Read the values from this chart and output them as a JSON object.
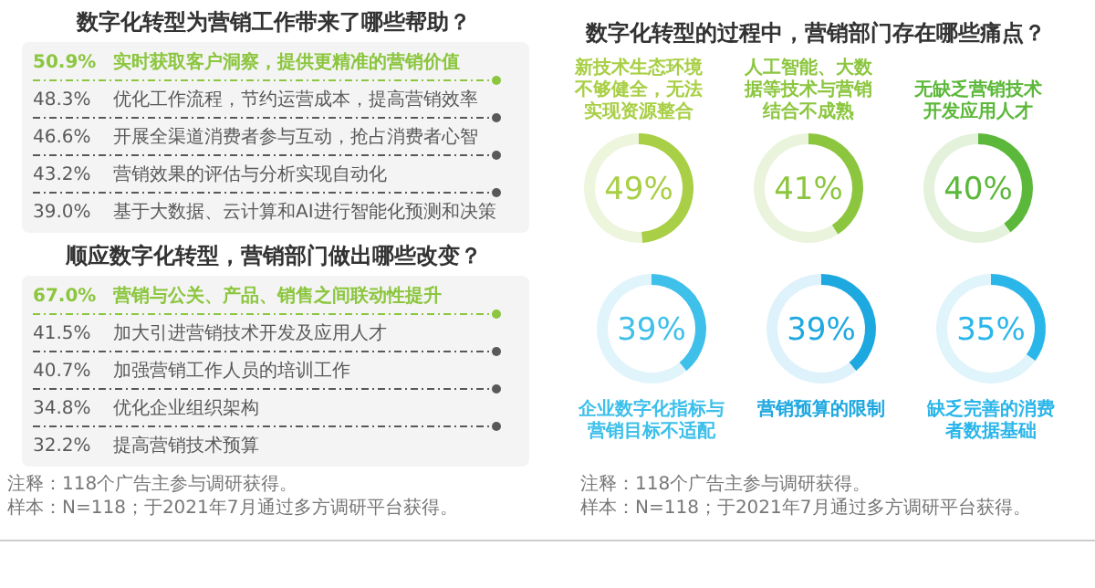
{
  "chart_data": [
    {
      "type": "other",
      "title": "数字化转型为营销工作带来了哪些帮助？",
      "categories": [
        "实时获取客户洞察，提供更精准的营销价值",
        "优化工作流程，节约运营成本，提高营销效率",
        "开展全渠道消费者参与互动，抢占消费者心智",
        "营销效果的评估与分析实现自动化",
        "基于大数据、云计算和AI进行智能化预测和决策"
      ],
      "value_labels": [
        "50.9%",
        "48.3%",
        "46.6%",
        "43.2%",
        "39.0%"
      ]
    },
    {
      "type": "other",
      "title": "顺应数字化转型，营销部门做出哪些改变？",
      "categories": [
        "营销与公关、产品、销售之间联动性提升",
        "加大引进营销技术开发及应用人才",
        "加强营销工作人员的培训工作",
        "优化企业组织架构",
        "提高营销技术预算"
      ],
      "value_labels": [
        "67.0%",
        "41.5%",
        "40.7%",
        "34.8%",
        "32.2%"
      ],
      "annotations": [
        "注释：118个广告主参与调研获得。",
        "样本：N=118；于2021年7月通过多方调研平台获得。"
      ]
    },
    {
      "type": "other",
      "title": "数字化转型的过程中，营销部门存在哪些痛点？",
      "annotations": [
        "注释：118个广告主参与调研获得。",
        "样本：N=118；于2021年7月通过多方调研平台获得。"
      ]
    },
    {
      "type": "donut",
      "title": "新技术生态环境不够健全，无法实现资源整合",
      "categories": [
        null,
        null
      ],
      "values": [
        49,
        51
      ],
      "annotations": [
        "49%"
      ],
      "colors": [
        "#a8cf45",
        "#eef5dd"
      ]
    },
    {
      "type": "donut",
      "title": "人工智能、大数据等技术与营销结合不成熟",
      "categories": [
        null,
        null
      ],
      "values": [
        41,
        59
      ],
      "annotations": [
        "41%"
      ],
      "colors": [
        "#8cc63f",
        "#eaf4dc"
      ]
    },
    {
      "type": "donut",
      "title": "无缺乏营销技术开发应用人才",
      "categories": [
        null,
        null
      ],
      "values": [
        40,
        60
      ],
      "annotations": [
        "40%"
      ],
      "colors": [
        "#5cb83a",
        "#e4f2dc"
      ]
    },
    {
      "type": "donut",
      "title": "企业数字化指标与营销目标不适配",
      "categories": [
        null,
        null
      ],
      "values": [
        39,
        61
      ],
      "annotations": [
        "39%"
      ],
      "colors": [
        "#3ec0ea",
        "#e0f4fb"
      ]
    },
    {
      "type": "donut",
      "title": "营销预算的限制",
      "categories": [
        null,
        null
      ],
      "values": [
        39,
        61
      ],
      "annotations": [
        "39%"
      ],
      "colors": [
        "#1ea8e0",
        "#def2fb"
      ]
    },
    {
      "type": "donut",
      "title": "缺乏完善的消费者数据基础",
      "categories": [
        null,
        null
      ],
      "values": [
        35,
        65
      ],
      "annotations": [
        "35%"
      ],
      "colors": [
        "#2bb6ea",
        "#e0f4fb"
      ]
    }
  ]
}
